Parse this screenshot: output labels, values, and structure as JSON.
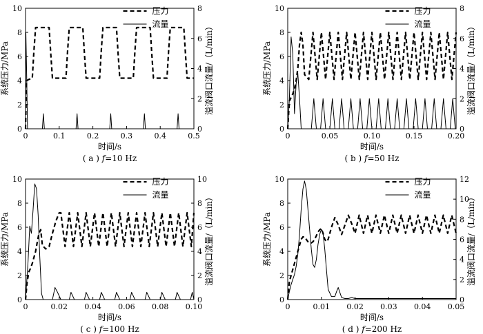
{
  "chart_data": [
    {
      "type": "line",
      "caption_prefix": "( a ) ",
      "caption_f": "f",
      "caption_suffix": "=10 Hz",
      "xlabel": "时间/s",
      "ylabel": "系统压力/MPa",
      "y2label": "溢流阀口流量/（L/min）",
      "xlim": [
        0,
        0.5
      ],
      "ylim": [
        0,
        10
      ],
      "y2lim": [
        0,
        8
      ],
      "x_ticks": [
        "0.1",
        "0.2",
        "0.3",
        "0.4",
        "0.5"
      ],
      "y_ticks": [
        "0",
        "2",
        "4",
        "6",
        "8",
        "10"
      ],
      "y2_ticks": [
        "0",
        "2",
        "4",
        "6",
        "8"
      ],
      "legend_position": "top-right",
      "series": [
        {
          "name": "压力",
          "style": "dashed",
          "axis": "left",
          "x": [
            0,
            0.003,
            0.01,
            0.02,
            0.025,
            0.03,
            0.07,
            0.075,
            0.08,
            0.12,
            0.125,
            0.13,
            0.17,
            0.175,
            0.18,
            0.22,
            0.225,
            0.23,
            0.27,
            0.275,
            0.28,
            0.32,
            0.325,
            0.33,
            0.37,
            0.375,
            0.38,
            0.42,
            0.425,
            0.43,
            0.47,
            0.475,
            0.48,
            0.5
          ],
          "y": [
            0,
            4.0,
            4.1,
            4.2,
            6.5,
            8.4,
            8.4,
            6.2,
            4.2,
            4.2,
            6.5,
            8.4,
            8.4,
            6.2,
            4.2,
            4.2,
            6.5,
            8.4,
            8.4,
            6.2,
            4.2,
            4.2,
            6.5,
            8.4,
            8.4,
            6.2,
            4.2,
            4.2,
            6.5,
            8.4,
            8.4,
            6.2,
            4.2,
            4.2
          ]
        },
        {
          "name": "流量",
          "style": "solid",
          "axis": "right",
          "x": [
            0,
            0.001,
            0.003,
            0.006,
            0.01,
            0.05,
            0.053,
            0.056,
            0.15,
            0.153,
            0.156,
            0.25,
            0.253,
            0.256,
            0.35,
            0.353,
            0.356,
            0.45,
            0.453,
            0.456,
            0.5
          ],
          "y": [
            0,
            6.4,
            4.0,
            0.0,
            0.0,
            0.0,
            1.0,
            0.0,
            0.0,
            1.0,
            0.0,
            0.0,
            1.0,
            0.0,
            0.0,
            1.0,
            0.0,
            0.0,
            1.0,
            0.0,
            0.0
          ]
        }
      ]
    },
    {
      "type": "line",
      "caption_prefix": "( b ) ",
      "caption_f": "f",
      "caption_suffix": "=50 Hz",
      "xlabel": "时间/s",
      "ylabel": "系统压力/MPa",
      "y2label": "溢流阀口流量/（L/min）",
      "xlim": [
        0,
        0.2
      ],
      "ylim": [
        0,
        10
      ],
      "y2lim": [
        0,
        8
      ],
      "x_ticks": [
        "0.05",
        "0.10",
        "0.15",
        "0.20"
      ],
      "y_ticks": [
        "0",
        "2",
        "4",
        "6",
        "8",
        "10"
      ],
      "y2_ticks": [
        "0",
        "2",
        "4",
        "6",
        "8"
      ],
      "legend_position": "top-right",
      "series": [
        {
          "name": "压力",
          "style": "dashed",
          "axis": "left",
          "x": [
            0,
            0.002,
            0.004,
            0.006,
            0.008,
            0.01,
            0.012,
            0.014,
            0.016,
            0.018,
            0.02,
            0.025,
            0.03,
            0.035,
            0.04,
            0.045,
            0.05,
            0.055,
            0.06,
            0.065,
            0.07,
            0.075,
            0.08,
            0.085,
            0.09,
            0.095,
            0.1,
            0.105,
            0.11,
            0.115,
            0.12,
            0.125,
            0.13,
            0.135,
            0.14,
            0.145,
            0.15,
            0.155,
            0.16,
            0.165,
            0.17,
            0.175,
            0.18,
            0.185,
            0.19,
            0.195,
            0.2
          ],
          "y": [
            0,
            2.3,
            2.6,
            2.9,
            3.3,
            4.0,
            5.0,
            7.0,
            8.0,
            7.0,
            4.5,
            4.1,
            8.0,
            4.1,
            8.0,
            4.1,
            8.0,
            4.1,
            8.0,
            4.1,
            8.0,
            4.1,
            8.0,
            4.1,
            8.0,
            4.1,
            8.0,
            4.1,
            8.0,
            4.1,
            8.0,
            4.1,
            8.0,
            4.1,
            8.0,
            4.1,
            8.0,
            4.1,
            8.0,
            4.1,
            8.0,
            4.1,
            8.0,
            4.1,
            8.0,
            4.1,
            8.0
          ]
        },
        {
          "name": "流量",
          "style": "solid",
          "axis": "right",
          "x": [
            0,
            0.002,
            0.004,
            0.006,
            0.008,
            0.01,
            0.012,
            0.014,
            0.016,
            0.028,
            0.031,
            0.034,
            0.039,
            0.042,
            0.045,
            0.05,
            0.053,
            0.056,
            0.061,
            0.064,
            0.067,
            0.072,
            0.075,
            0.078,
            0.083,
            0.086,
            0.089,
            0.094,
            0.097,
            0.1,
            0.105,
            0.108,
            0.111,
            0.116,
            0.119,
            0.122,
            0.127,
            0.13,
            0.133,
            0.138,
            0.141,
            0.144,
            0.149,
            0.152,
            0.155,
            0.16,
            0.163,
            0.166,
            0.171,
            0.174,
            0.177,
            0.182,
            0.185,
            0.188,
            0.193,
            0.196,
            0.199,
            0.2
          ],
          "y": [
            0,
            2.0,
            6.1,
            5.0,
            1.0,
            3.0,
            3.7,
            2.0,
            0.0,
            0.0,
            2.0,
            0.0,
            0.0,
            2.0,
            0.0,
            0.0,
            2.0,
            0.0,
            0.0,
            2.0,
            0.0,
            0.0,
            2.0,
            0.0,
            0.0,
            2.0,
            0.0,
            0.0,
            2.0,
            0.0,
            0.0,
            2.0,
            0.0,
            0.0,
            2.0,
            0.0,
            0.0,
            2.0,
            0.0,
            0.0,
            2.0,
            0.0,
            0.0,
            2.0,
            0.0,
            0.0,
            2.0,
            0.0,
            0.0,
            2.0,
            0.0,
            0.0,
            2.0,
            0.0,
            0.0,
            2.0,
            0.0,
            0.0
          ]
        }
      ]
    },
    {
      "type": "line",
      "caption_prefix": "( c ) ",
      "caption_f": "f",
      "caption_suffix": "=100 Hz",
      "xlabel": "时间/s",
      "ylabel": "系统压力/MPa",
      "y2label": "溢流阀口流量/（L/min）",
      "xlim": [
        0,
        0.1
      ],
      "ylim": [
        0,
        10
      ],
      "y2lim": [
        0,
        10
      ],
      "x_ticks": [
        "0.02",
        "0.04",
        "0.06",
        "0.08",
        "0.10"
      ],
      "y_ticks": [
        "0",
        "2",
        "4",
        "6",
        "8",
        "10"
      ],
      "y2_ticks": [
        "0",
        "2",
        "4",
        "6",
        "8",
        "10"
      ],
      "legend_position": "top-right",
      "series": [
        {
          "name": "压力",
          "style": "dashed",
          "axis": "left",
          "x": [
            0,
            0.001,
            0.002,
            0.003,
            0.004,
            0.005,
            0.006,
            0.007,
            0.008,
            0.009,
            0.01,
            0.012,
            0.014,
            0.016,
            0.018,
            0.02,
            0.021,
            0.0235,
            0.026,
            0.0285,
            0.031,
            0.0335,
            0.036,
            0.0385,
            0.041,
            0.0435,
            0.046,
            0.0485,
            0.051,
            0.0535,
            0.056,
            0.0585,
            0.061,
            0.0635,
            0.066,
            0.0685,
            0.071,
            0.0735,
            0.076,
            0.0785,
            0.081,
            0.0835,
            0.086,
            0.0885,
            0.091,
            0.0935,
            0.096,
            0.0985,
            0.1
          ],
          "y": [
            0,
            1.5,
            2.3,
            2.6,
            3.0,
            3.5,
            4.0,
            4.8,
            5.5,
            5.8,
            4.5,
            4.2,
            4.4,
            5.5,
            6.5,
            7.2,
            7.2,
            4.4,
            7.2,
            4.4,
            7.2,
            4.4,
            7.2,
            4.4,
            7.2,
            4.4,
            7.2,
            4.4,
            7.2,
            4.4,
            7.2,
            4.4,
            7.2,
            4.4,
            7.2,
            4.4,
            7.2,
            4.4,
            7.2,
            4.4,
            7.2,
            4.4,
            7.2,
            4.4,
            7.2,
            4.4,
            7.2,
            4.4,
            7.2
          ]
        },
        {
          "name": "流量",
          "style": "solid",
          "axis": "right",
          "x": [
            0,
            0.0015,
            0.0025,
            0.0035,
            0.0045,
            0.0055,
            0.0065,
            0.0075,
            0.0085,
            0.0095,
            0.0105,
            0.016,
            0.0175,
            0.019,
            0.021,
            0.026,
            0.027,
            0.029,
            0.035,
            0.036,
            0.038,
            0.044,
            0.045,
            0.047,
            0.053,
            0.054,
            0.056,
            0.062,
            0.063,
            0.065,
            0.071,
            0.072,
            0.074,
            0.08,
            0.081,
            0.083,
            0.089,
            0.09,
            0.092,
            0.098,
            0.099,
            0.1
          ],
          "y": [
            0,
            3.2,
            6.1,
            5.5,
            7.5,
            9.6,
            9.2,
            7.0,
            3.5,
            0.5,
            0.0,
            0.0,
            1.0,
            0.6,
            0.0,
            0.0,
            0.6,
            0.0,
            0.0,
            0.6,
            0.0,
            0.0,
            0.6,
            0.0,
            0.0,
            0.6,
            0.0,
            0.0,
            0.6,
            0.0,
            0.0,
            0.6,
            0.0,
            0.0,
            0.6,
            0.0,
            0.0,
            0.6,
            0.0,
            0.0,
            0.6,
            0.0
          ]
        }
      ]
    },
    {
      "type": "line",
      "caption_prefix": "( d ) ",
      "caption_f": "f",
      "caption_suffix": "=200 Hz",
      "xlabel": "时间/s",
      "ylabel": "系统压力/MPa",
      "y2label": "溢流阀口流量/（L/min）",
      "xlim": [
        0,
        0.05
      ],
      "ylim": [
        0,
        10
      ],
      "y2lim": [
        0,
        12
      ],
      "x_ticks": [
        "0.01",
        "0.02",
        "0.03",
        "0.04",
        "0.05"
      ],
      "y_ticks": [
        "0",
        "2",
        "4",
        "6",
        "8",
        "10"
      ],
      "y2_ticks": [
        "0",
        "2",
        "4",
        "6",
        "8",
        "10",
        "12"
      ],
      "legend_position": "top-right",
      "series": [
        {
          "name": "压力",
          "style": "dashed",
          "axis": "left",
          "x": [
            0,
            0.0005,
            0.001,
            0.0015,
            0.002,
            0.0025,
            0.003,
            0.0035,
            0.004,
            0.0045,
            0.005,
            0.0055,
            0.006,
            0.0065,
            0.007,
            0.0075,
            0.008,
            0.0085,
            0.009,
            0.0095,
            0.01,
            0.0105,
            0.011,
            0.0115,
            0.012,
            0.013,
            0.014,
            0.015,
            0.016,
            0.017,
            0.018,
            0.019,
            0.02,
            0.0212,
            0.0225,
            0.0237,
            0.025,
            0.0262,
            0.0275,
            0.0287,
            0.03,
            0.0312,
            0.0325,
            0.0337,
            0.035,
            0.0362,
            0.0375,
            0.0387,
            0.04,
            0.0412,
            0.0425,
            0.0437,
            0.045,
            0.0462,
            0.0475,
            0.0487,
            0.05
          ],
          "y": [
            0,
            1.5,
            2.0,
            2.5,
            3.0,
            3.5,
            4.0,
            4.5,
            5.0,
            5.2,
            5.2,
            5.0,
            4.8,
            4.7,
            4.7,
            4.8,
            5.0,
            5.3,
            5.6,
            5.8,
            5.9,
            5.5,
            5.0,
            4.8,
            5.0,
            6.0,
            6.8,
            6.2,
            5.4,
            6.2,
            7.0,
            6.3,
            5.5,
            7.0,
            5.5,
            7.0,
            5.5,
            7.0,
            5.5,
            7.0,
            5.5,
            7.0,
            5.5,
            7.0,
            5.5,
            7.0,
            5.5,
            7.0,
            5.5,
            7.0,
            5.5,
            7.0,
            5.5,
            7.0,
            5.5,
            7.0,
            5.5
          ]
        },
        {
          "name": "流量",
          "style": "solid",
          "axis": "right",
          "x": [
            0,
            0.0005,
            0.001,
            0.0015,
            0.002,
            0.0025,
            0.003,
            0.0035,
            0.004,
            0.0045,
            0.005,
            0.0055,
            0.006,
            0.0065,
            0.007,
            0.0075,
            0.008,
            0.0085,
            0.009,
            0.0095,
            0.01,
            0.0105,
            0.011,
            0.0115,
            0.012,
            0.013,
            0.014,
            0.0145,
            0.015,
            0.0155,
            0.016,
            0.017,
            0.018,
            0.019,
            0.02,
            0.025,
            0.03,
            0.035,
            0.04,
            0.045,
            0.05
          ],
          "y": [
            0,
            0.8,
            1.5,
            2.0,
            2.5,
            3.3,
            4.5,
            6.5,
            9.0,
            11.0,
            11.8,
            11.0,
            9.0,
            7.0,
            5.0,
            3.5,
            3.2,
            4.0,
            5.5,
            6.5,
            7.0,
            6.6,
            5.0,
            3.0,
            1.0,
            0.3,
            0.3,
            0.8,
            1.2,
            0.7,
            0.2,
            0.1,
            0.1,
            0.2,
            0.1,
            0.1,
            0.1,
            0.1,
            0.1,
            0.1,
            0.1
          ]
        }
      ]
    }
  ]
}
